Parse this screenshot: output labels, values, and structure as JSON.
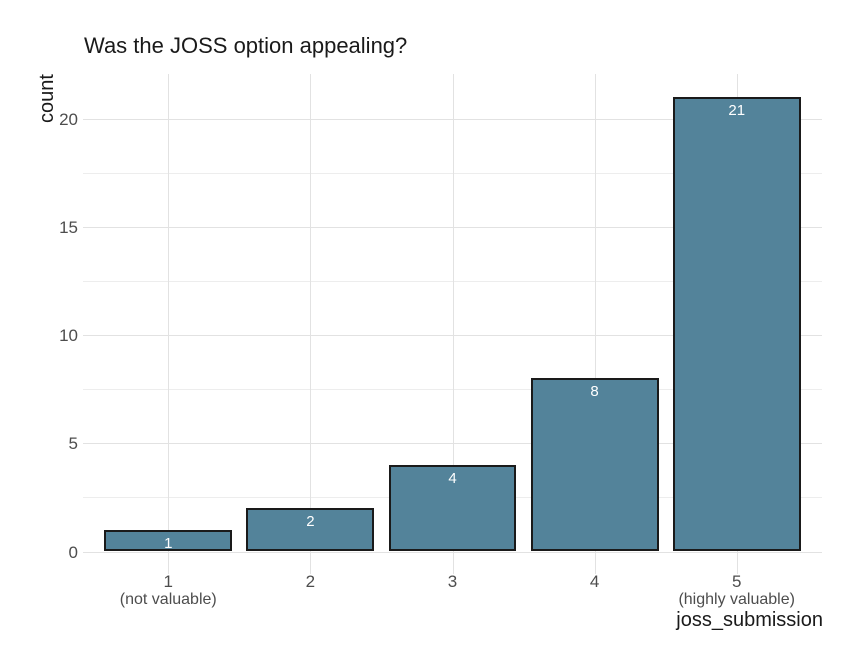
{
  "chart_data": {
    "type": "bar",
    "title": "Was the JOSS option appealing?",
    "xlabel": "joss_submission",
    "ylabel": "count",
    "categories": [
      "1",
      "2",
      "3",
      "4",
      "5"
    ],
    "category_sublabels": [
      "(not valuable)",
      "",
      "",
      "",
      "(highly valuable)"
    ],
    "values": [
      1,
      2,
      4,
      8,
      21
    ],
    "bar_labels": [
      "1",
      "2",
      "4",
      "8",
      "21"
    ],
    "yticks": [
      0,
      5,
      10,
      15,
      20
    ],
    "ylim": [
      -0.65,
      22.1
    ],
    "grid": {
      "horizontal": "major and minor",
      "vertical": "major at category centers"
    },
    "legend": "none",
    "colors": {
      "background": "#FFFFFF",
      "bar_fill": "#53839A",
      "bar_border": "#1A1A1A",
      "bar_label_text": "#FFFFFF",
      "gridline_major": "#E2E2E2",
      "gridline_minor": "#EDEDED",
      "tick_label": "#4D4D4D",
      "title_text": "#1A1A1A"
    }
  }
}
